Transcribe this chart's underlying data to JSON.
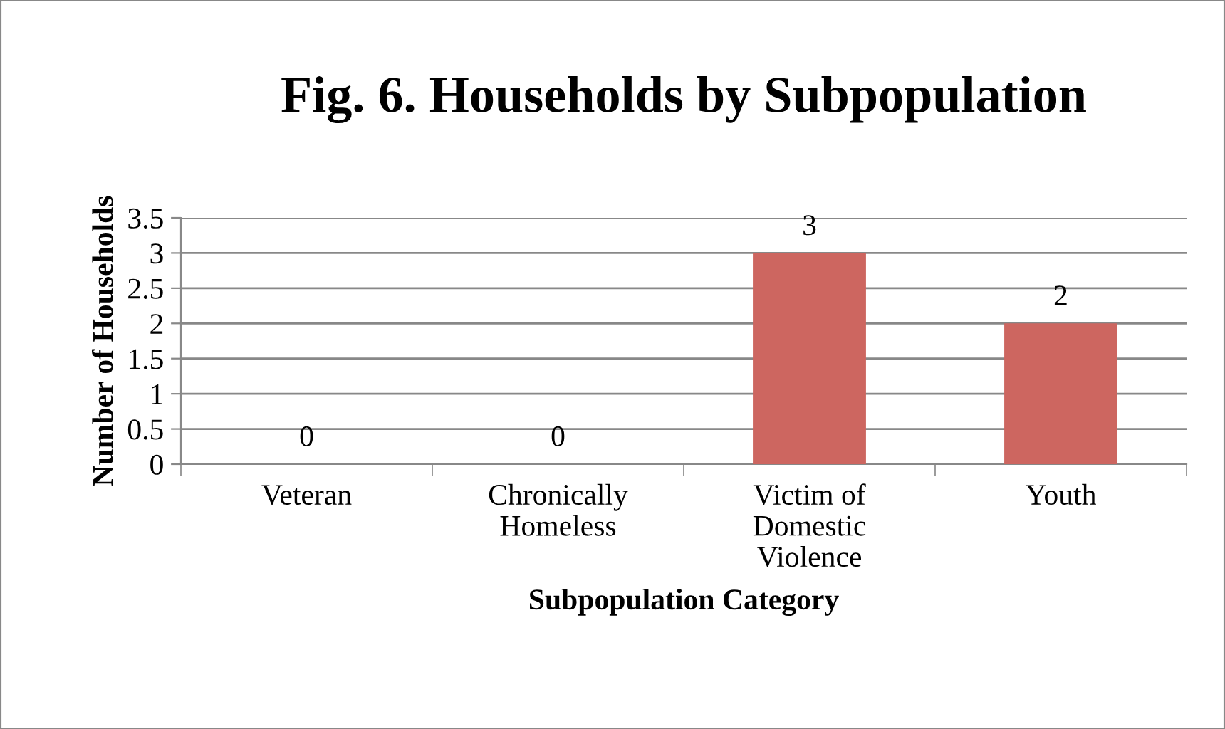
{
  "chart_data": {
    "type": "bar",
    "title": "Fig. 6. Households by Subpopulation",
    "xlabel": "Subpopulation Category",
    "ylabel": "Number of Households",
    "categories": [
      "Veteran",
      "Chronically\nHomeless",
      "Victim of\nDomestic\nViolence",
      "Youth"
    ],
    "values": [
      0,
      0,
      3,
      2
    ],
    "color": "#cd6660",
    "ylim": [
      0,
      3.5
    ],
    "yticks": [
      0,
      0.5,
      1,
      1.5,
      2,
      2.5,
      3,
      3.5
    ],
    "grid": "y",
    "data_labels": true
  }
}
